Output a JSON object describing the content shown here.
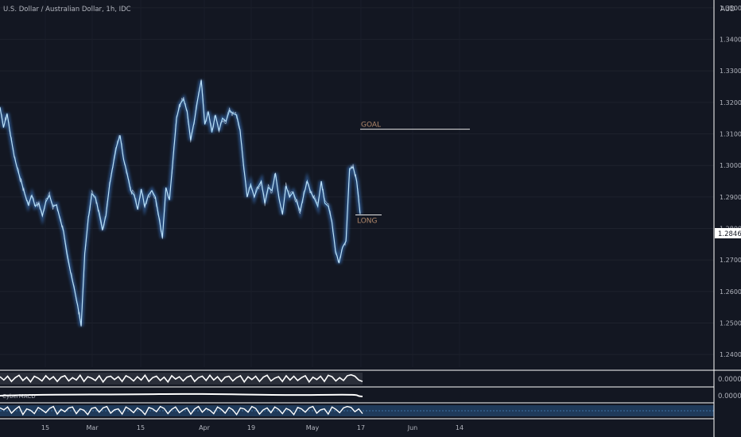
{
  "header": {
    "symbol_title": "U.S. Dollar / Australian Dollar, 1h, IDC"
  },
  "price_axis": {
    "currency": "AUD",
    "current_price_label": "1.2846",
    "indicator_zero_label_1": "0.0000",
    "indicator_zero_label_2": "0.0000"
  },
  "annotations": {
    "goal_label": "GOAL",
    "long_label": "LONG",
    "goal_price": 1.3115,
    "long_price": 1.2843
  },
  "indicator": {
    "macd_label": "CyberMACD"
  },
  "colors": {
    "background": "#131722",
    "price_line": "#9fd3f3",
    "price_glow": "#3a78c4",
    "text": "#b2b5be",
    "annotation": "#b0876a",
    "axis_border": "#ffffff",
    "indicator_band": "#1f3a5a"
  },
  "chart_data": {
    "type": "line",
    "title": "U.S. Dollar / Australian Dollar, 1h, IDC",
    "xlabel": "",
    "ylabel": "",
    "ylim": [
      1.236,
      1.3525
    ],
    "y_ticks": [
      1.24,
      1.25,
      1.26,
      1.27,
      1.28,
      1.29,
      1.3,
      1.31,
      1.32,
      1.33,
      1.34,
      1.35
    ],
    "y_tick_labels": [
      "1.2400",
      "1.2500",
      "1.2600",
      "1.2700",
      "1.2800",
      "1.2900",
      "1.3000",
      "1.3100",
      "1.3200",
      "1.3300",
      "1.3400",
      "1.3500"
    ],
    "x_tick_labels": [
      "15",
      "Mar",
      "15",
      "Apr",
      "19",
      "May",
      "17",
      "Jun",
      "14"
    ],
    "grid": true,
    "series": [
      {
        "values": [
          1.3185,
          1.312,
          1.3165,
          1.3095,
          1.303,
          1.2985,
          1.295,
          1.291,
          1.2875,
          1.2905,
          1.287,
          1.288,
          1.284,
          1.2885,
          1.2905,
          1.287,
          1.2875,
          1.283,
          1.279,
          1.272,
          1.266,
          1.261,
          1.2555,
          1.249,
          1.272,
          1.283,
          1.291,
          1.29,
          1.285,
          1.2795,
          1.284,
          1.2935,
          1.3,
          1.306,
          1.3095,
          1.302,
          1.2975,
          1.292,
          1.2905,
          1.286,
          1.2925,
          1.287,
          1.2905,
          1.292,
          1.29,
          1.2835,
          1.277,
          1.293,
          1.289,
          1.302,
          1.315,
          1.3195,
          1.321,
          1.317,
          1.308,
          1.314,
          1.321,
          1.327,
          1.313,
          1.317,
          1.3105,
          1.316,
          1.311,
          1.315,
          1.314,
          1.3175,
          1.3165,
          1.316,
          1.311,
          1.3,
          1.29,
          1.294,
          1.29,
          1.293,
          1.295,
          1.288,
          1.293,
          1.292,
          1.2975,
          1.2895,
          1.2845,
          1.2935,
          1.29,
          1.2915,
          1.2885,
          1.2855,
          1.2905,
          1.295,
          1.2915,
          1.2895,
          1.287,
          1.295,
          1.288,
          1.287,
          1.282,
          1.273,
          1.269,
          1.274,
          1.276,
          1.299,
          1.2995,
          1.295,
          1.2846
        ]
      }
    ],
    "indicator_series_1": [
      0.4,
      -0.3,
      0.5,
      -0.6,
      0.2,
      0.7,
      -0.4,
      0.3,
      -0.7,
      0.5,
      0.1,
      -0.5,
      0.6,
      -0.2,
      0.4,
      -0.6,
      0.3,
      0.6,
      -0.5,
      0.2,
      -0.3,
      0.7,
      -0.6,
      0.4,
      0.1,
      -0.4,
      0.6,
      -0.7,
      0.3,
      0.5,
      -0.2,
      0.4,
      -0.6,
      0.6,
      0.2,
      -0.5,
      0.4,
      -0.3,
      0.7,
      -0.6,
      0.2,
      0.5,
      -0.4,
      0.3,
      -0.7,
      0.6,
      -0.1,
      0.4,
      -0.5,
      0.3,
      0.6,
      -0.6,
      0.2,
      0.5,
      -0.4,
      0.7,
      -0.3,
      0.4,
      -0.6,
      0.3,
      0.5,
      -0.5,
      0.2,
      0.6,
      -0.7,
      0.4,
      -0.2,
      0.5,
      -0.6,
      0.3,
      0.7,
      -0.5,
      0.1,
      0.4,
      -0.6,
      0.6,
      -0.3,
      0.5,
      -0.4,
      0.2,
      0.6,
      -0.7,
      0.3,
      -0.2,
      0.5,
      -0.6,
      0.7,
      0.4,
      -0.5,
      0.2,
      -0.4,
      0.6,
      0.8,
      0.5,
      -0.3,
      -0.6
    ],
    "indicator_series_2": [
      0.6,
      0.2,
      0.8,
      -0.5,
      0.3,
      0.9,
      -0.8,
      0.4,
      0.1,
      -0.6,
      0.7,
      0.2,
      -0.4,
      0.5,
      0.9,
      -0.7,
      0.3,
      -0.2,
      0.6,
      0.8,
      -0.6,
      0.4,
      0.1,
      -0.8,
      0.5,
      0.7,
      -0.3,
      0.6,
      0.9,
      -0.5,
      0.2,
      0.4,
      -0.7,
      0.8,
      0.3,
      -0.4,
      0.6,
      0.1,
      -0.8,
      0.7,
      0.4,
      -0.2,
      0.9,
      0.5,
      -0.6,
      0.3,
      0.8,
      -0.4,
      0.2,
      0.6,
      -0.7,
      0.4,
      0.9,
      -0.3,
      0.5,
      0.1,
      -0.6,
      0.8,
      0.3,
      -0.5,
      0.7,
      0.2,
      -0.8,
      0.6,
      0.4,
      -0.3,
      0.9,
      0.5,
      -0.7,
      0.2,
      0.6,
      -0.4,
      0.8,
      0.3,
      -0.6,
      0.5,
      0.1,
      -0.8,
      0.7,
      0.4,
      -0.3,
      0.6,
      0.9,
      -0.5,
      0.2,
      0.4,
      -0.7,
      0.8,
      0.3,
      -0.4,
      0.6,
      0.9,
      0.7,
      -0.2,
      0.4,
      -0.6
    ]
  }
}
